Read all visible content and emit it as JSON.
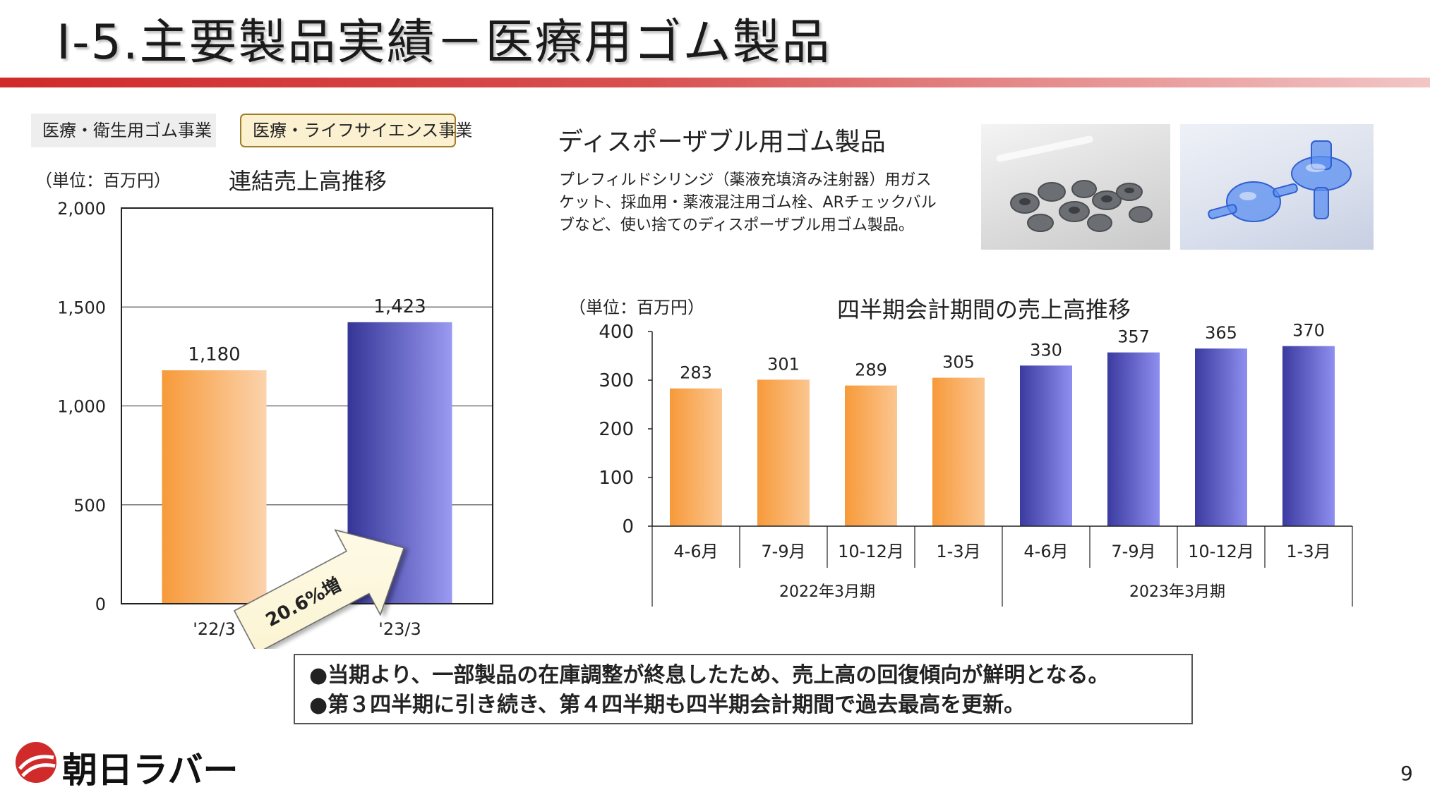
{
  "page": {
    "title": "Ⅰ-5.主要製品実績－医療用ゴム製品",
    "tags": [
      "医療・衛生用ゴム事業",
      "医療・ライフサイエンス事業"
    ],
    "section_title": "ディスポーザブル用ゴム製品",
    "description": "プレフィルドシリンジ（薬液充填済み注射器）用ガスケット、採血用・薬液混注用ゴム栓、ARチェックバルブなど、使い捨てのディスポーザブル用ゴム製品。",
    "notes": [
      "●当期より、一部製品の在庫調整が終息したため、売上高の回復傾向が鮮明となる。",
      "●第３四半期に引き続き、第４四半期も四半期会計期間で過去最高を更新。"
    ],
    "logo_text": "朝日ラバー",
    "page_number": "9",
    "colors": {
      "brand_red": "#d02a2a",
      "orange": "#f7a04a",
      "blue": "#3c3c9e"
    }
  },
  "chart_data": [
    {
      "type": "bar",
      "title": "連結売上高推移",
      "unit": "（単位：百万円）",
      "categories": [
        "'22/3",
        "'23/3"
      ],
      "values": [
        1180,
        1423
      ],
      "value_labels": [
        "1,180",
        "1,423"
      ],
      "ylim": [
        0,
        2000
      ],
      "yticks": [
        0,
        500,
        1000,
        1500,
        2000
      ],
      "ytick_labels": [
        "0",
        "500",
        "1,000",
        "1,500",
        "2,000"
      ],
      "grid": true,
      "annotation": "20.6%増",
      "bar_colors": [
        "orange",
        "blue"
      ]
    },
    {
      "type": "bar",
      "title": "四半期会計期間の売上高推移",
      "unit": "（単位：百万円）",
      "categories": [
        "4-6月",
        "7-9月",
        "10-12月",
        "1-3月",
        "4-6月",
        "7-9月",
        "10-12月",
        "1-3月"
      ],
      "groups": [
        {
          "label": "2022年3月期",
          "count": 4
        },
        {
          "label": "2023年3月期",
          "count": 4
        }
      ],
      "values": [
        283,
        301,
        289,
        305,
        330,
        357,
        365,
        370
      ],
      "ylim": [
        0,
        400
      ],
      "yticks": [
        0,
        100,
        200,
        300,
        400
      ],
      "grid": false,
      "bar_colors": [
        "orange",
        "orange",
        "orange",
        "orange",
        "blue",
        "blue",
        "blue",
        "blue"
      ]
    }
  ]
}
